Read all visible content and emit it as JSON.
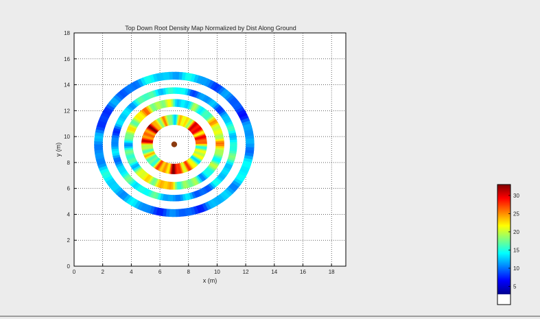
{
  "chart_data": {
    "type": "heatmap",
    "title": "Top Down Root Density Map Normalized by Dist Along Ground",
    "xlabel": "x (m)",
    "ylabel": "y (m)",
    "xlim": [
      0,
      19
    ],
    "ylim": [
      0,
      18
    ],
    "x_ticks": [
      "0",
      "2",
      "4",
      "6",
      "8",
      "10",
      "12",
      "14",
      "16",
      "18"
    ],
    "y_ticks": [
      "0",
      "2",
      "4",
      "6",
      "8",
      "10",
      "12",
      "14",
      "16",
      "18"
    ],
    "grid": true,
    "center": {
      "x": 7,
      "y": 9.4
    },
    "trunk_marker": {
      "x": 7,
      "y": 9.4,
      "color": "#8b3a0f"
    },
    "rings": [
      {
        "inner_radius": 1.5,
        "outer_radius": 2.3,
        "mean_value": 22
      },
      {
        "inner_radius": 2.9,
        "outer_radius": 3.5,
        "mean_value": 17
      },
      {
        "inner_radius": 3.9,
        "outer_radius": 4.4,
        "mean_value": 11
      },
      {
        "inner_radius": 5.0,
        "outer_radius": 5.6,
        "mean_value": 9
      }
    ],
    "colorbar": {
      "range": [
        0,
        33
      ],
      "ticks": [
        "5",
        "10",
        "15",
        "20",
        "25",
        "30"
      ],
      "tick_values": [
        5,
        10,
        15,
        20,
        25,
        30
      ],
      "colormap": "jet"
    }
  }
}
